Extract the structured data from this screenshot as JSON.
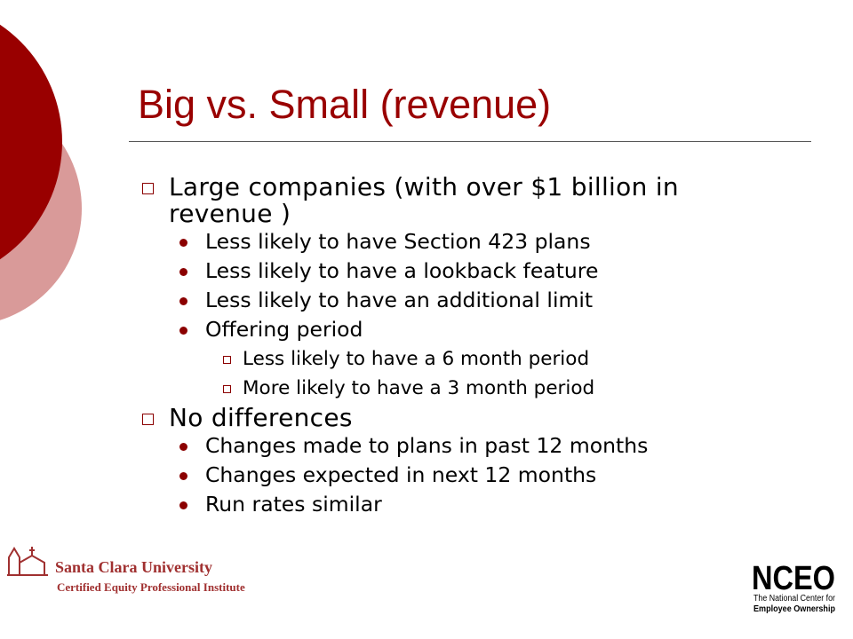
{
  "slide": {
    "title": "Big vs. Small (revenue)",
    "bullets": [
      {
        "text": "Large companies (with over $1 billion in revenue )",
        "children": [
          {
            "text": "Less likely to have Section 423 plans"
          },
          {
            "text": "Less likely to have a lookback feature"
          },
          {
            "text": "Less likely to have an additional limit"
          },
          {
            "text": "Offering period",
            "children": [
              {
                "text": "Less likely to have a 6 month period"
              },
              {
                "text": "More likely to have a 3 month period"
              }
            ]
          }
        ]
      },
      {
        "text": "No differences",
        "children": [
          {
            "text": "Changes made to plans in past 12 months"
          },
          {
            "text": "Changes expected in next 12 months"
          },
          {
            "text": "Run rates similar"
          }
        ]
      }
    ],
    "logo_left": {
      "name": "Santa Clara University",
      "subtitle": "Certified Equity Professional Institute"
    },
    "logo_right": {
      "mark": "NCEO",
      "line1": "The National Center for",
      "line2": "Employee Ownership"
    }
  }
}
